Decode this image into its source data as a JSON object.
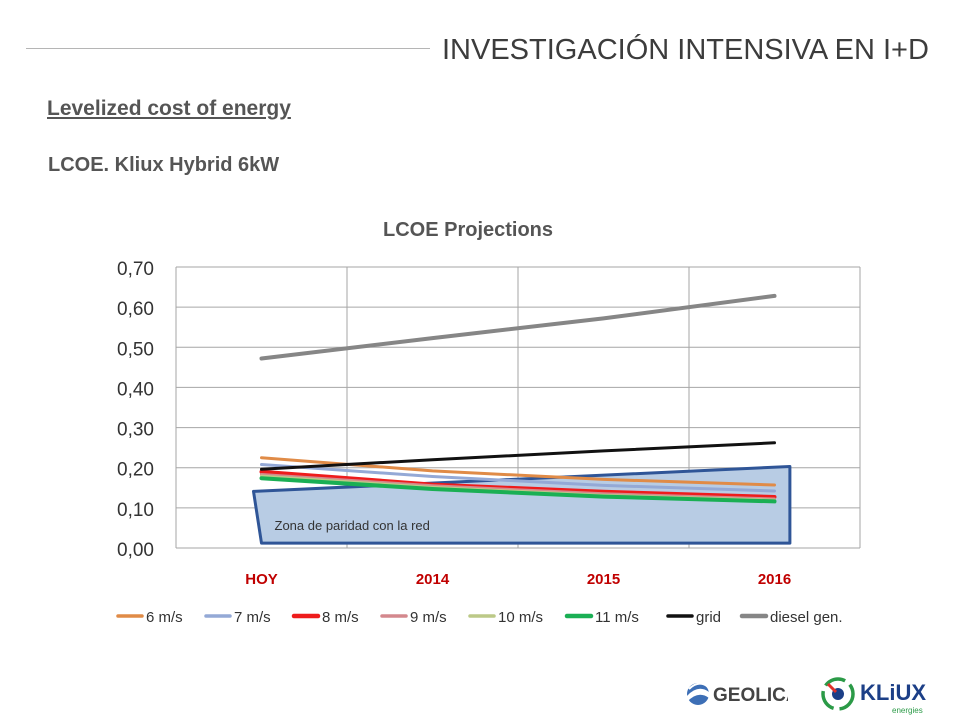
{
  "header": {
    "title": "INVESTIGACIÓN INTENSIVA EN I+D"
  },
  "section": {
    "title": "Levelized cost of energy",
    "subtitle": "LCOE. Kliux Hybrid 6kW"
  },
  "logos": {
    "geolica": "GEOLICA",
    "kliux": "KLiUX",
    "kliux_sub": "energies"
  },
  "colors": {
    "category_label": "#c00000",
    "parity_fill": "#b8cce4",
    "parity_edge": "#2f5597"
  },
  "chart_data": {
    "type": "line",
    "title": "LCOE Projections",
    "xlabel": "",
    "ylabel": "",
    "categories": [
      "HOY",
      "2014",
      "2015",
      "2016"
    ],
    "ylim": [
      0,
      0.7
    ],
    "yticks": [
      "0,00",
      "0,10",
      "0,20",
      "0,30",
      "0,40",
      "0,50",
      "0,60",
      "0,70"
    ],
    "grid": true,
    "legend_position": "bottom",
    "series": [
      {
        "name": "6 m/s",
        "color": "#e08b47",
        "width": 3,
        "values": [
          0.225,
          0.192,
          0.171,
          0.157
        ]
      },
      {
        "name": "7 m/s",
        "color": "#94a9d6",
        "width": 3,
        "values": [
          0.208,
          0.178,
          0.156,
          0.142
        ]
      },
      {
        "name": "8 m/s",
        "color": "#ee1c1c",
        "width": 4,
        "values": [
          0.19,
          0.158,
          0.14,
          0.127
        ]
      },
      {
        "name": "9 m/s",
        "color": "#d4888d",
        "width": 3,
        "values": [
          0.183,
          0.155,
          0.135,
          0.122
        ]
      },
      {
        "name": "10 m/s",
        "color": "#bcc987",
        "width": 3,
        "values": [
          0.179,
          0.151,
          0.131,
          0.119
        ]
      },
      {
        "name": "11 m/s",
        "color": "#1aaf54",
        "width": 4,
        "values": [
          0.174,
          0.147,
          0.128,
          0.116
        ]
      },
      {
        "name": "grid",
        "color": "#111111",
        "width": 3,
        "values": [
          0.196,
          0.22,
          0.242,
          0.262
        ]
      },
      {
        "name": "diesel gen.",
        "color": "#868686",
        "width": 4,
        "values": [
          0.472,
          0.523,
          0.572,
          0.628
        ]
      }
    ],
    "annotations": [
      {
        "text": "Zona de paridad con la red"
      }
    ]
  }
}
